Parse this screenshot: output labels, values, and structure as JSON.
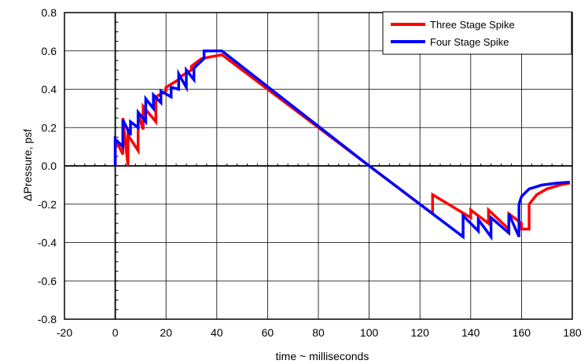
{
  "chart_data": {
    "type": "line",
    "title": "",
    "xlabel": "time ~ milliseconds",
    "ylabel": "ΔPressure, psf",
    "xlim": [
      -20,
      180
    ],
    "ylim": [
      -0.8,
      0.8
    ],
    "xticks": [
      -20,
      0,
      20,
      40,
      60,
      80,
      100,
      120,
      140,
      160,
      180
    ],
    "yticks": [
      -0.8,
      -0.6,
      -0.4,
      -0.2,
      0.0,
      0.2,
      0.4,
      0.6,
      0.8
    ],
    "xtick_labels": [
      "-20",
      "0",
      "20",
      "40",
      "60",
      "80",
      "100",
      "120",
      "140",
      "160",
      "180"
    ],
    "ytick_labels": [
      "-0.8",
      "-0.6",
      "-0.4",
      "-0.2",
      "0.0",
      "0.2",
      "0.4",
      "0.6",
      "0.8"
    ],
    "grid": true,
    "legend_position": "top-right",
    "series": [
      {
        "name": "Three Stage Spike",
        "color": "#ff0000",
        "x": [
          0,
          0,
          3,
          3,
          5,
          5,
          9,
          9,
          11,
          11,
          16,
          16,
          20,
          20,
          25,
          25,
          30,
          30,
          34,
          34,
          42,
          100,
          125,
          125,
          140,
          140,
          147,
          147,
          155,
          155,
          160,
          160,
          163,
          163,
          166,
          170,
          175,
          179
        ],
        "y": [
          0.0,
          0.14,
          0.06,
          0.25,
          0.0,
          0.16,
          0.08,
          0.27,
          0.19,
          0.31,
          0.23,
          0.36,
          0.39,
          0.41,
          0.45,
          0.46,
          0.5,
          0.52,
          0.56,
          0.56,
          0.58,
          0.0,
          -0.25,
          -0.15,
          -0.27,
          -0.23,
          -0.3,
          -0.23,
          -0.33,
          -0.25,
          -0.3,
          -0.33,
          -0.33,
          -0.2,
          -0.15,
          -0.12,
          -0.1,
          -0.09
        ]
      },
      {
        "name": "Four Stage Spike",
        "color": "#0000ff",
        "x": [
          0,
          0,
          3,
          3,
          6,
          6,
          9,
          9,
          12,
          12,
          15,
          15,
          18,
          18,
          22,
          22,
          25,
          25,
          28,
          28,
          31,
          31,
          35,
          35,
          42,
          100,
          137,
          137,
          143,
          143,
          148,
          148,
          155,
          155,
          159,
          159,
          160,
          163,
          168,
          174,
          179
        ],
        "y": [
          0.0,
          0.14,
          0.1,
          0.24,
          0.16,
          0.23,
          0.2,
          0.28,
          0.23,
          0.35,
          0.3,
          0.37,
          0.33,
          0.39,
          0.36,
          0.41,
          0.4,
          0.48,
          0.41,
          0.5,
          0.45,
          0.51,
          0.56,
          0.6,
          0.6,
          0.0,
          -0.37,
          -0.26,
          -0.34,
          -0.28,
          -0.37,
          -0.27,
          -0.35,
          -0.25,
          -0.37,
          -0.2,
          -0.16,
          -0.12,
          -0.1,
          -0.09,
          -0.085
        ]
      }
    ]
  }
}
